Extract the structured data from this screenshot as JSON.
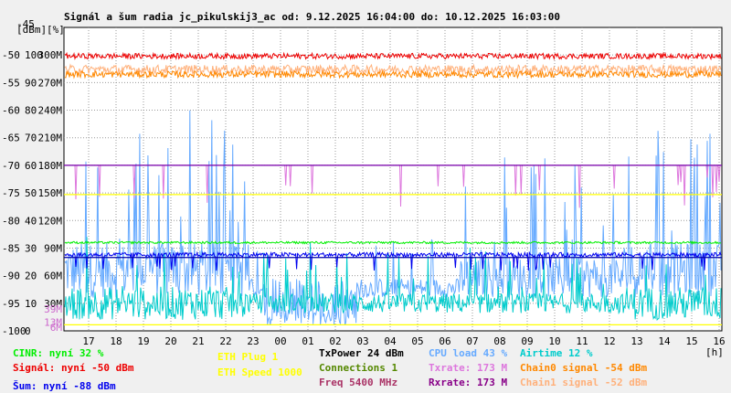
{
  "chart_data": {
    "type": "line",
    "title": "Signál a šum radia jc_pikulskij3_ac od: 9.12.2025 16:04:00 do: 10.12.2025 16:03:00",
    "y_top_label_a": "[dBm]",
    "y_top_label_b": "[%]",
    "y_top_value": "-45",
    "x_unit": "[h]",
    "ylim": [
      -100,
      -45
    ],
    "x_ticks": [
      "17",
      "18",
      "19",
      "20",
      "21",
      "22",
      "23",
      "00",
      "01",
      "02",
      "03",
      "04",
      "05",
      "06",
      "07",
      "08",
      "09",
      "10",
      "11",
      "12",
      "13",
      "14",
      "15",
      "16"
    ],
    "y_ticks": [
      {
        "v": -50,
        "dbm": "-50",
        "pct": "100",
        "rate": "300M"
      },
      {
        "v": -55,
        "dbm": "-55",
        "pct": "90",
        "rate": "270M"
      },
      {
        "v": -60,
        "dbm": "-60",
        "pct": "80",
        "rate": "240M"
      },
      {
        "v": -65,
        "dbm": "-65",
        "pct": "70",
        "rate": "210M"
      },
      {
        "v": -70,
        "dbm": "-70",
        "pct": "60",
        "rate": "180M"
      },
      {
        "v": -75,
        "dbm": "-75",
        "pct": "50",
        "rate": "150M"
      },
      {
        "v": -80,
        "dbm": "-80",
        "pct": "40",
        "rate": "120M"
      },
      {
        "v": -85,
        "dbm": "-85",
        "pct": "30",
        "rate": "90M"
      },
      {
        "v": -90,
        "dbm": "-90",
        "pct": "20",
        "rate": "60M"
      },
      {
        "v": -95,
        "dbm": "-95",
        "pct": "10",
        "rate": "30M"
      },
      {
        "v": -100,
        "dbm": "-100",
        "pct": "0",
        "rate": ""
      }
    ],
    "extra_labels": [
      {
        "text": "39M",
        "v": -96.0,
        "color": "#cc66cc"
      },
      {
        "text": "13M",
        "v": -98.4,
        "color": "#cc66cc"
      },
      {
        "text": "6M",
        "v": -99.3,
        "color": "#cc66cc"
      }
    ],
    "reference_lines": [
      {
        "v": -70.0,
        "color": "#7700aa"
      },
      {
        "v": -75.3,
        "color": "#ffff00"
      },
      {
        "v": -86.7,
        "color": "#0000aa"
      },
      {
        "v": -98.9,
        "color": "#ffff00"
      }
    ],
    "series": [
      {
        "key": "signal",
        "color": "#ee0000",
        "base": -50.2,
        "noise": 0.5,
        "mode": "band"
      },
      {
        "key": "chain0",
        "color": "#ff8800",
        "base": -53.5,
        "noise": 0.6,
        "mode": "band"
      },
      {
        "key": "chain1",
        "color": "#ffb07a",
        "base": -52.6,
        "noise": 0.8,
        "mode": "band"
      },
      {
        "key": "cinr",
        "color": "#00ee00",
        "base": -84.0,
        "noise": 0.2,
        "mode": "band"
      },
      {
        "key": "noise",
        "color": "#0000ee",
        "base": -86.2,
        "noise": 0.4,
        "mode": "band"
      },
      {
        "key": "txrate",
        "color": "#dd77dd",
        "base": -70.0,
        "noise": 0.0,
        "mode": "dips"
      },
      {
        "key": "cpu",
        "color": "#66aaff",
        "base": -88.0,
        "noise": 0.0,
        "mode": "spiky"
      },
      {
        "key": "airtime",
        "color": "#00cccc",
        "base": -95.0,
        "noise": 0.0,
        "mode": "spiky_low"
      }
    ]
  },
  "legend": {
    "cinr": {
      "text": "CINR: nyní 32 %",
      "color": "#00ee00"
    },
    "signal": {
      "text": "Signál: nyní -50 dBm",
      "color": "#ee0000"
    },
    "noise": {
      "text": "Šum: nyní -88 dBm",
      "color": "#0000ee"
    },
    "eth_plug": {
      "text": "ETH Plug 1",
      "color": "#ffff00"
    },
    "eth_speed": {
      "text": "ETH Speed 1000",
      "color": "#ffff00"
    },
    "txpower": {
      "text": "TxPower 24 dBm",
      "color": "#000000"
    },
    "connections": {
      "text": "Connections 1",
      "color": "#558800"
    },
    "freq": {
      "text": "Freq 5400 MHz",
      "color": "#aa3366"
    },
    "cpu": {
      "text": "CPU load 43 %",
      "color": "#66aaff"
    },
    "txrate": {
      "text": "Txrate: 173 M",
      "color": "#dd77dd"
    },
    "rxrate": {
      "text": "Rxrate: 173 M",
      "color": "#880088"
    },
    "airtime": {
      "text": "Airtime 12 %",
      "color": "#00cccc"
    },
    "chain0": {
      "text": "Chain0 signal -54 dBm",
      "color": "#ff8800"
    },
    "chain1": {
      "text": "Chain1 signal -52 dBm",
      "color": "#ffb07a"
    }
  }
}
